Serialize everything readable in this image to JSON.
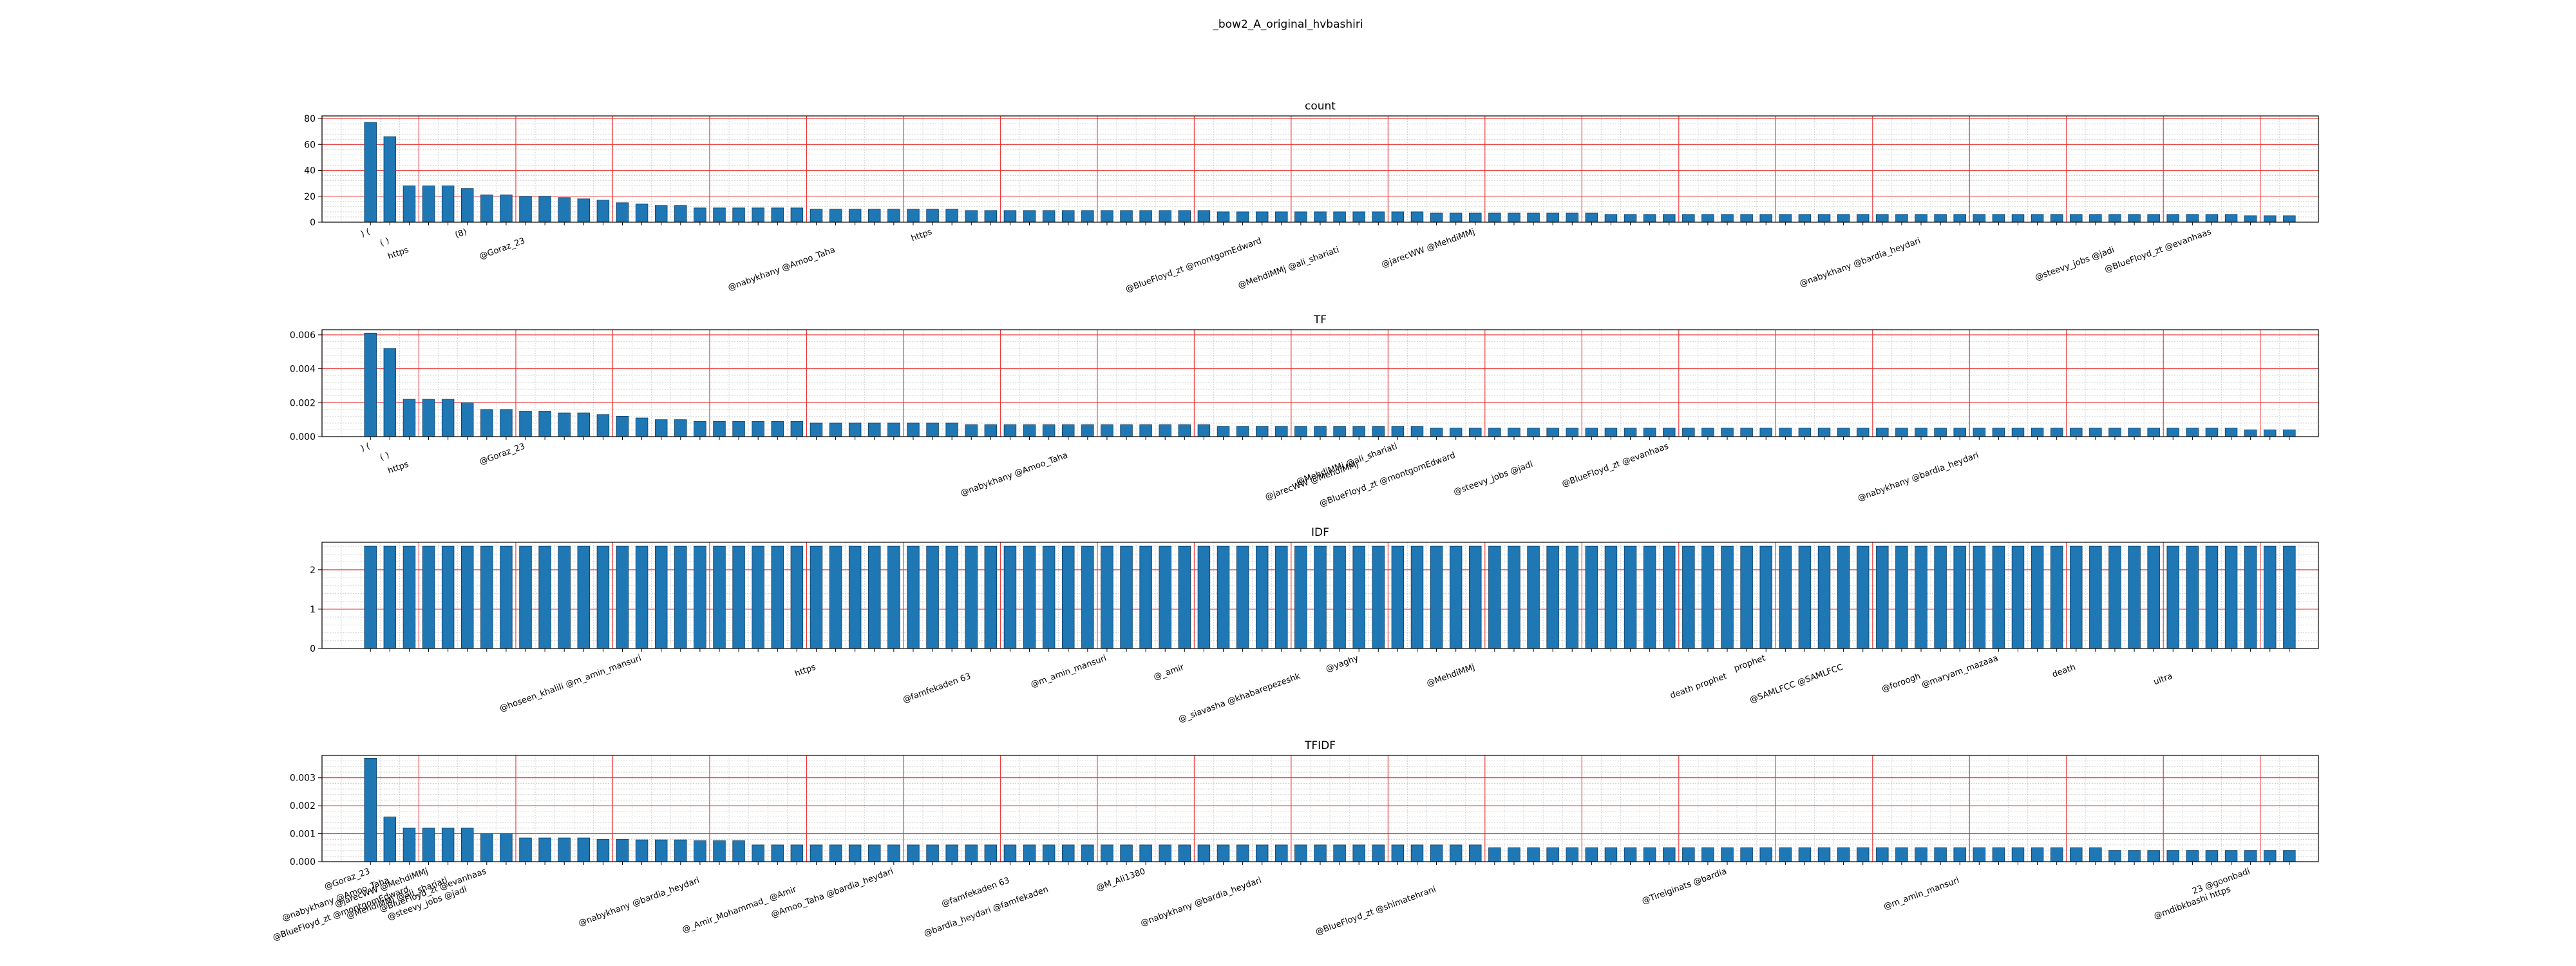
{
  "figure_title": "_bow2_A_original_hvbashiri",
  "colors": {
    "bar": "#1f77b4",
    "bar_edge": "#0a3d66",
    "major_grid": "#e83030",
    "minor_grid": "#bbbbbb"
  },
  "chart_data": [
    {
      "type": "bar",
      "title": "count",
      "ylim": [
        0,
        82
      ],
      "yticks": [
        0,
        20,
        40,
        60,
        80
      ],
      "ytick_labels": [
        "0",
        "20",
        "40",
        "60",
        "80"
      ],
      "grid": true,
      "n_bars": 100,
      "values": [
        77,
        66,
        28,
        28,
        28,
        26,
        21,
        21,
        20,
        20,
        19,
        18,
        17,
        15,
        14,
        13,
        13,
        11,
        11,
        11,
        11,
        11,
        11,
        10,
        10,
        10,
        10,
        10,
        10,
        10,
        10,
        9,
        9,
        9,
        9,
        9,
        9,
        9,
        9,
        9,
        9,
        9,
        9,
        9,
        8,
        8,
        8,
        8,
        8,
        8,
        8,
        8,
        8,
        8,
        8,
        7,
        7,
        7,
        7,
        7,
        7,
        7,
        7,
        7,
        6,
        6,
        6,
        6,
        6,
        6,
        6,
        6,
        6,
        6,
        6,
        6,
        6,
        6,
        6,
        6,
        6,
        6,
        6,
        6,
        6,
        6,
        6,
        6,
        6,
        6,
        6,
        6,
        6,
        6,
        6,
        6,
        6,
        5,
        5,
        5
      ],
      "labeled_categories": [
        {
          "index": 0,
          "label": ") ("
        },
        {
          "index": 1,
          "label": "( )"
        },
        {
          "index": 2,
          "label": "https"
        },
        {
          "index": 5,
          "label": "(8)"
        },
        {
          "index": 8,
          "label": "@Goraz_23"
        },
        {
          "index": 24,
          "label": "@nabykhany @Amoo_Taha"
        },
        {
          "index": 29,
          "label": "https"
        },
        {
          "index": 46,
          "label": "@BlueFloyd_zt @montgomEdward"
        },
        {
          "index": 50,
          "label": "@MehdiMMj @ali_shariati"
        },
        {
          "index": 57,
          "label": "@jarecWW @MehdiMMj"
        },
        {
          "index": 80,
          "label": "@nabykhany @bardia_heydari"
        },
        {
          "index": 90,
          "label": "@steevy_jobs @jadi"
        },
        {
          "index": 95,
          "label": "@BlueFloyd_zt @evanhaas"
        }
      ]
    },
    {
      "type": "bar",
      "title": "TF",
      "ylim": [
        0,
        0.0063
      ],
      "yticks": [
        0,
        0.002,
        0.004,
        0.006
      ],
      "ytick_labels": [
        "0.000",
        "0.002",
        "0.004",
        "0.006"
      ],
      "grid": true,
      "n_bars": 100,
      "values": [
        0.0061,
        0.0052,
        0.0022,
        0.0022,
        0.0022,
        0.002,
        0.0016,
        0.0016,
        0.0015,
        0.0015,
        0.0014,
        0.0014,
        0.0013,
        0.0012,
        0.0011,
        0.001,
        0.001,
        0.0009,
        0.0009,
        0.0009,
        0.0009,
        0.0009,
        0.0009,
        0.0008,
        0.0008,
        0.0008,
        0.0008,
        0.0008,
        0.0008,
        0.0008,
        0.0008,
        0.0007,
        0.0007,
        0.0007,
        0.0007,
        0.0007,
        0.0007,
        0.0007,
        0.0007,
        0.0007,
        0.0007,
        0.0007,
        0.0007,
        0.0007,
        0.0006,
        0.0006,
        0.0006,
        0.0006,
        0.0006,
        0.0006,
        0.0006,
        0.0006,
        0.0006,
        0.0006,
        0.0006,
        0.0005,
        0.0005,
        0.0005,
        0.0005,
        0.0005,
        0.0005,
        0.0005,
        0.0005,
        0.0005,
        0.0005,
        0.0005,
        0.0005,
        0.0005,
        0.0005,
        0.0005,
        0.0005,
        0.0005,
        0.0005,
        0.0005,
        0.0005,
        0.0005,
        0.0005,
        0.0005,
        0.0005,
        0.0005,
        0.0005,
        0.0005,
        0.0005,
        0.0005,
        0.0005,
        0.0005,
        0.0005,
        0.0005,
        0.0005,
        0.0005,
        0.0005,
        0.0005,
        0.0005,
        0.0005,
        0.0005,
        0.0005,
        0.0005,
        0.0004,
        0.0004,
        0.0004
      ],
      "labeled_categories": [
        {
          "index": 0,
          "label": ") ("
        },
        {
          "index": 1,
          "label": "( )"
        },
        {
          "index": 2,
          "label": "https"
        },
        {
          "index": 8,
          "label": "@Goraz_23"
        },
        {
          "index": 36,
          "label": "@nabykhany @Amoo_Taha"
        },
        {
          "index": 51,
          "label": "@jarecWW @MehdiMMj"
        },
        {
          "index": 53,
          "label": "@MehdiMMj @ali_shariati"
        },
        {
          "index": 56,
          "label": "@BlueFloyd_zt @montgomEdward"
        },
        {
          "index": 60,
          "label": "@steevy_jobs @jadi"
        },
        {
          "index": 67,
          "label": "@BlueFloyd_zt @evanhaas"
        },
        {
          "index": 83,
          "label": "@nabykhany @bardia_heydari"
        }
      ]
    },
    {
      "type": "bar",
      "title": "IDF",
      "ylim": [
        0,
        2.7
      ],
      "yticks": [
        0,
        1,
        2
      ],
      "ytick_labels": [
        "0",
        "1",
        "2"
      ],
      "grid": true,
      "n_bars": 100,
      "values": [
        2.6,
        2.6,
        2.6,
        2.6,
        2.6,
        2.6,
        2.6,
        2.6,
        2.6,
        2.6,
        2.6,
        2.6,
        2.6,
        2.6,
        2.6,
        2.6,
        2.6,
        2.6,
        2.6,
        2.6,
        2.6,
        2.6,
        2.6,
        2.6,
        2.6,
        2.6,
        2.6,
        2.6,
        2.6,
        2.6,
        2.6,
        2.6,
        2.6,
        2.6,
        2.6,
        2.6,
        2.6,
        2.6,
        2.6,
        2.6,
        2.6,
        2.6,
        2.6,
        2.6,
        2.6,
        2.6,
        2.6,
        2.6,
        2.6,
        2.6,
        2.6,
        2.6,
        2.6,
        2.6,
        2.6,
        2.6,
        2.6,
        2.6,
        2.6,
        2.6,
        2.6,
        2.6,
        2.6,
        2.6,
        2.6,
        2.6,
        2.6,
        2.6,
        2.6,
        2.6,
        2.6,
        2.6,
        2.6,
        2.6,
        2.6,
        2.6,
        2.6,
        2.6,
        2.6,
        2.6,
        2.6,
        2.6,
        2.6,
        2.6,
        2.6,
        2.6,
        2.6,
        2.6,
        2.6,
        2.6,
        2.6,
        2.6,
        2.6,
        2.6,
        2.6,
        2.6,
        2.6,
        2.6,
        2.6,
        2.6
      ],
      "labeled_categories": [
        {
          "index": 14,
          "label": "@hoseen_khalili @m_amin_mansuri"
        },
        {
          "index": 23,
          "label": "https"
        },
        {
          "index": 31,
          "label": "@famfekaden 63"
        },
        {
          "index": 38,
          "label": "@m_amin_mansuri"
        },
        {
          "index": 42,
          "label": "@_amir"
        },
        {
          "index": 48,
          "label": "@_siavasha @khabarepezeshk"
        },
        {
          "index": 51,
          "label": "@yaghy"
        },
        {
          "index": 57,
          "label": "@MehdiMMj"
        },
        {
          "index": 70,
          "label": "death prophet"
        },
        {
          "index": 72,
          "label": "prophet"
        },
        {
          "index": 76,
          "label": "@SAMLFCC @SAMLFCC"
        },
        {
          "index": 80,
          "label": "@foroogh"
        },
        {
          "index": 84,
          "label": "@maryam_mazaaa"
        },
        {
          "index": 88,
          "label": "death"
        },
        {
          "index": 93,
          "label": "ultra"
        }
      ]
    },
    {
      "type": "bar",
      "title": "TFIDF",
      "ylim": [
        0,
        0.0038
      ],
      "yticks": [
        0,
        0.001,
        0.002,
        0.003
      ],
      "ytick_labels": [
        "0.000",
        "0.001",
        "0.002",
        "0.003"
      ],
      "grid": true,
      "n_bars": 100,
      "values": [
        0.0037,
        0.0016,
        0.0012,
        0.0012,
        0.0012,
        0.0012,
        0.001,
        0.001,
        0.00085,
        0.00085,
        0.00085,
        0.00085,
        0.0008,
        0.0008,
        0.00078,
        0.00078,
        0.00078,
        0.00075,
        0.00075,
        0.00075,
        0.0006,
        0.0006,
        0.0006,
        0.0006,
        0.0006,
        0.0006,
        0.0006,
        0.0006,
        0.0006,
        0.0006,
        0.0006,
        0.0006,
        0.0006,
        0.0006,
        0.0006,
        0.0006,
        0.0006,
        0.0006,
        0.0006,
        0.0006,
        0.0006,
        0.0006,
        0.0006,
        0.0006,
        0.0006,
        0.0006,
        0.0006,
        0.0006,
        0.0006,
        0.0006,
        0.0006,
        0.0006,
        0.0006,
        0.0006,
        0.0006,
        0.0006,
        0.0006,
        0.0006,
        0.0005,
        0.0005,
        0.0005,
        0.0005,
        0.0005,
        0.0005,
        0.0005,
        0.0005,
        0.0005,
        0.0005,
        0.0005,
        0.0005,
        0.0005,
        0.0005,
        0.0005,
        0.0005,
        0.0005,
        0.0005,
        0.0005,
        0.0005,
        0.0005,
        0.0005,
        0.0005,
        0.0005,
        0.0005,
        0.0005,
        0.0005,
        0.0005,
        0.0005,
        0.0005,
        0.0005,
        0.0005,
        0.0004,
        0.0004,
        0.0004,
        0.0004,
        0.0004,
        0.0004,
        0.0004,
        0.0004,
        0.0004,
        0.0004
      ],
      "labeled_categories": [
        {
          "index": 0,
          "label": "@Goraz_23"
        },
        {
          "index": 1,
          "label": "@nabykhany @Amoo_Taha"
        },
        {
          "index": 2,
          "label": "@BlueFloyd_zt @montgomEdward"
        },
        {
          "index": 3,
          "label": "@jarecWW @MehdiMMj"
        },
        {
          "index": 4,
          "label": "@MehdiMMj @ali_shariati"
        },
        {
          "index": 5,
          "label": "@steevy_jobs @jadi"
        },
        {
          "index": 6,
          "label": "@BlueFloyd_zt @evanhaas"
        },
        {
          "index": 17,
          "label": "@nabykhany @bardia_heydari"
        },
        {
          "index": 22,
          "label": "@_Amir_Mohammad_ @Amir"
        },
        {
          "index": 27,
          "label": "@Amoo_Taha @bardia_heydari"
        },
        {
          "index": 33,
          "label": "@famfekaden 63"
        },
        {
          "index": 35,
          "label": "@bardia_heydari @famfekaden"
        },
        {
          "index": 40,
          "label": "@M_Ali1380"
        },
        {
          "index": 46,
          "label": "@nabykhany @bardia_heydari"
        },
        {
          "index": 55,
          "label": "@BlueFloyd_zt @shimatehrani"
        },
        {
          "index": 70,
          "label": "@Tirelginats @bardia"
        },
        {
          "index": 82,
          "label": "@m_amin_mansuri"
        },
        {
          "index": 96,
          "label": "@mdibkbashi https"
        },
        {
          "index": 97,
          "label": "23 @goonbadi"
        }
      ]
    }
  ]
}
